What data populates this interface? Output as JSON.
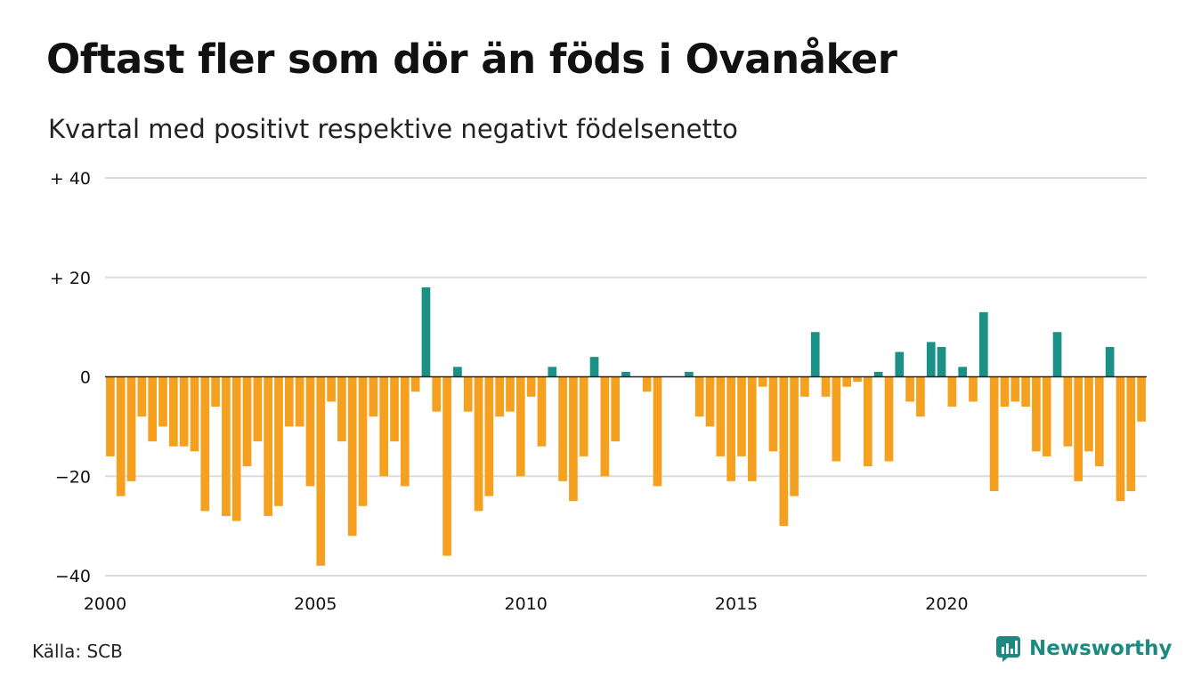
{
  "title": "Oftast fler som dör än föds i Ovanåker",
  "subtitle": "Kvartal med positivt respektive negativt födelsenetto",
  "source": "Källa: SCB",
  "brand": "Newsworthy",
  "colors": {
    "positive": "#1b9086",
    "negative": "#f5a11f",
    "grid": "#dcdcdc",
    "baseline": "#222222",
    "brand": "#1c8a80"
  },
  "chart_data": {
    "type": "bar",
    "x_start": 2000,
    "x_step": 0.25,
    "xlim": [
      2000,
      2024.75
    ],
    "ylim": [
      -40,
      40
    ],
    "y_ticks": [
      {
        "value": 40,
        "label": "+ 40"
      },
      {
        "value": 20,
        "label": "+ 20"
      },
      {
        "value": 0,
        "label": "0"
      },
      {
        "value": -20,
        "label": "−20"
      },
      {
        "value": -40,
        "label": "−40"
      }
    ],
    "x_ticks": [
      {
        "value": 2000,
        "label": "2000"
      },
      {
        "value": 2005,
        "label": "2005"
      },
      {
        "value": 2010,
        "label": "2010"
      },
      {
        "value": 2015,
        "label": "2015"
      },
      {
        "value": 2020,
        "label": "2020"
      }
    ],
    "values": [
      -16,
      -24,
      -21,
      -8,
      -13,
      -10,
      -14,
      -14,
      -15,
      -27,
      -6,
      -28,
      -29,
      -18,
      -13,
      -28,
      -26,
      -10,
      -10,
      -22,
      -38,
      -5,
      -13,
      -32,
      -26,
      -8,
      -20,
      -13,
      -22,
      -3,
      18,
      -7,
      -36,
      2,
      -7,
      -27,
      -24,
      -8,
      -7,
      -20,
      -4,
      -14,
      2,
      -21,
      -25,
      -16,
      4,
      -20,
      -13,
      1,
      0,
      -3,
      -22,
      0,
      0,
      1,
      -8,
      -10,
      -16,
      -21,
      -16,
      -21,
      -2,
      -15,
      -30,
      -24,
      -4,
      9,
      -4,
      -17,
      -2,
      -1,
      -18,
      1,
      -17,
      5,
      -5,
      -8,
      7,
      6,
      -6,
      2,
      -5,
      13,
      -23,
      -6,
      -5,
      -6,
      -15,
      -16,
      9,
      -14,
      -21,
      -15,
      -18,
      6,
      -25,
      -23,
      -9
    ]
  }
}
